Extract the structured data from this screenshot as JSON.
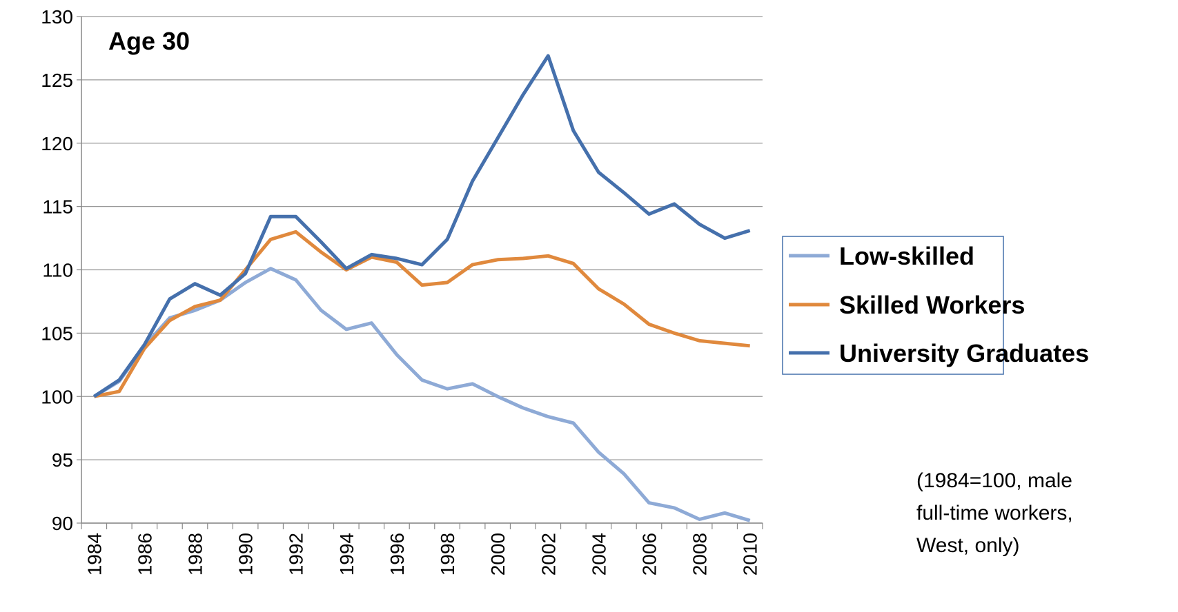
{
  "chart_data": {
    "type": "line",
    "title": "Age 30",
    "note": [
      "(1984=100, male",
      "full-time workers,",
      "West, only)"
    ],
    "categories": [
      "1984",
      null,
      "1986",
      null,
      "1988",
      null,
      "1990",
      null,
      "1992",
      null,
      "1994",
      null,
      "1996",
      null,
      "1998",
      null,
      "2000",
      null,
      "2002",
      null,
      "2004",
      null,
      "2006",
      null,
      "2008",
      null,
      "2010"
    ],
    "series": [
      {
        "name": "Low-skilled",
        "color": "#8eaad6",
        "values": [
          100,
          101.2,
          104,
          106.2,
          106.8,
          107.6,
          109,
          110.1,
          109.2,
          106.8,
          105.3,
          105.8,
          103.3,
          101.3,
          100.6,
          101,
          100,
          99.1,
          98.4,
          97.9,
          95.6,
          93.9,
          91.6,
          91.2,
          90.3,
          90.8,
          90.2
        ]
      },
      {
        "name": "Skilled Workers",
        "color": "#e0893d",
        "values": [
          100,
          100.4,
          103.8,
          106,
          107.1,
          107.6,
          110,
          112.4,
          113,
          111.4,
          110,
          111,
          110.6,
          108.8,
          109,
          110.4,
          110.8,
          110.9,
          111.1,
          110.5,
          108.5,
          107.3,
          105.7,
          105,
          104.4,
          104.2,
          104
        ]
      },
      {
        "name": "University Graduates",
        "color": "#4570ac",
        "values": [
          100,
          101.3,
          104.1,
          107.7,
          108.9,
          108,
          109.7,
          114.2,
          114.2,
          112.2,
          110.1,
          111.2,
          110.9,
          110.4,
          112.4,
          117,
          120.4,
          123.8,
          126.9,
          121,
          117.7,
          116.1,
          114.4,
          115.2,
          113.6,
          112.5,
          113.1
        ]
      }
    ],
    "ylim": [
      90,
      130
    ],
    "yticks": [
      90,
      95,
      100,
      105,
      110,
      115,
      120,
      125,
      130
    ],
    "grid": true
  }
}
